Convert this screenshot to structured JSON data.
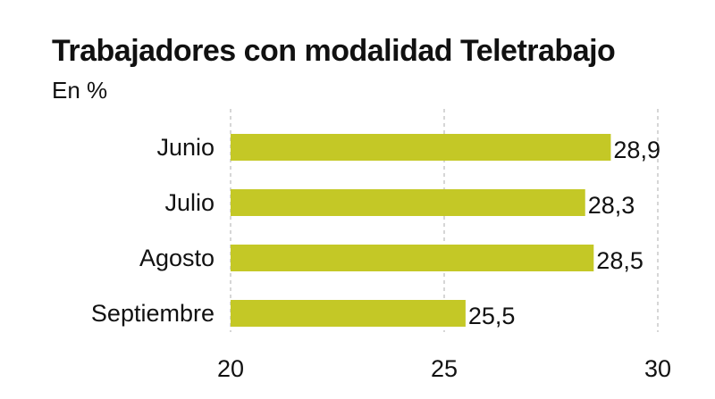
{
  "chart_data": {
    "type": "bar",
    "orientation": "horizontal",
    "title": "Trabajadores con modalidad Teletrabajo",
    "subtitle": "En %",
    "categories": [
      "Junio",
      "Julio",
      "Agosto",
      "Septiembre"
    ],
    "values": [
      28.9,
      28.3,
      28.5,
      25.5
    ],
    "value_labels": [
      "28,9",
      "28,3",
      "28,5",
      "25,5"
    ],
    "x_ticks": [
      20,
      25,
      30
    ],
    "x_tick_labels": [
      "20",
      "25",
      "30"
    ],
    "xlim": [
      20,
      30
    ],
    "grid": "vertical dashed",
    "legend": "none",
    "bar_color": "#c4c826",
    "grid_color": "#c8c8c8"
  }
}
